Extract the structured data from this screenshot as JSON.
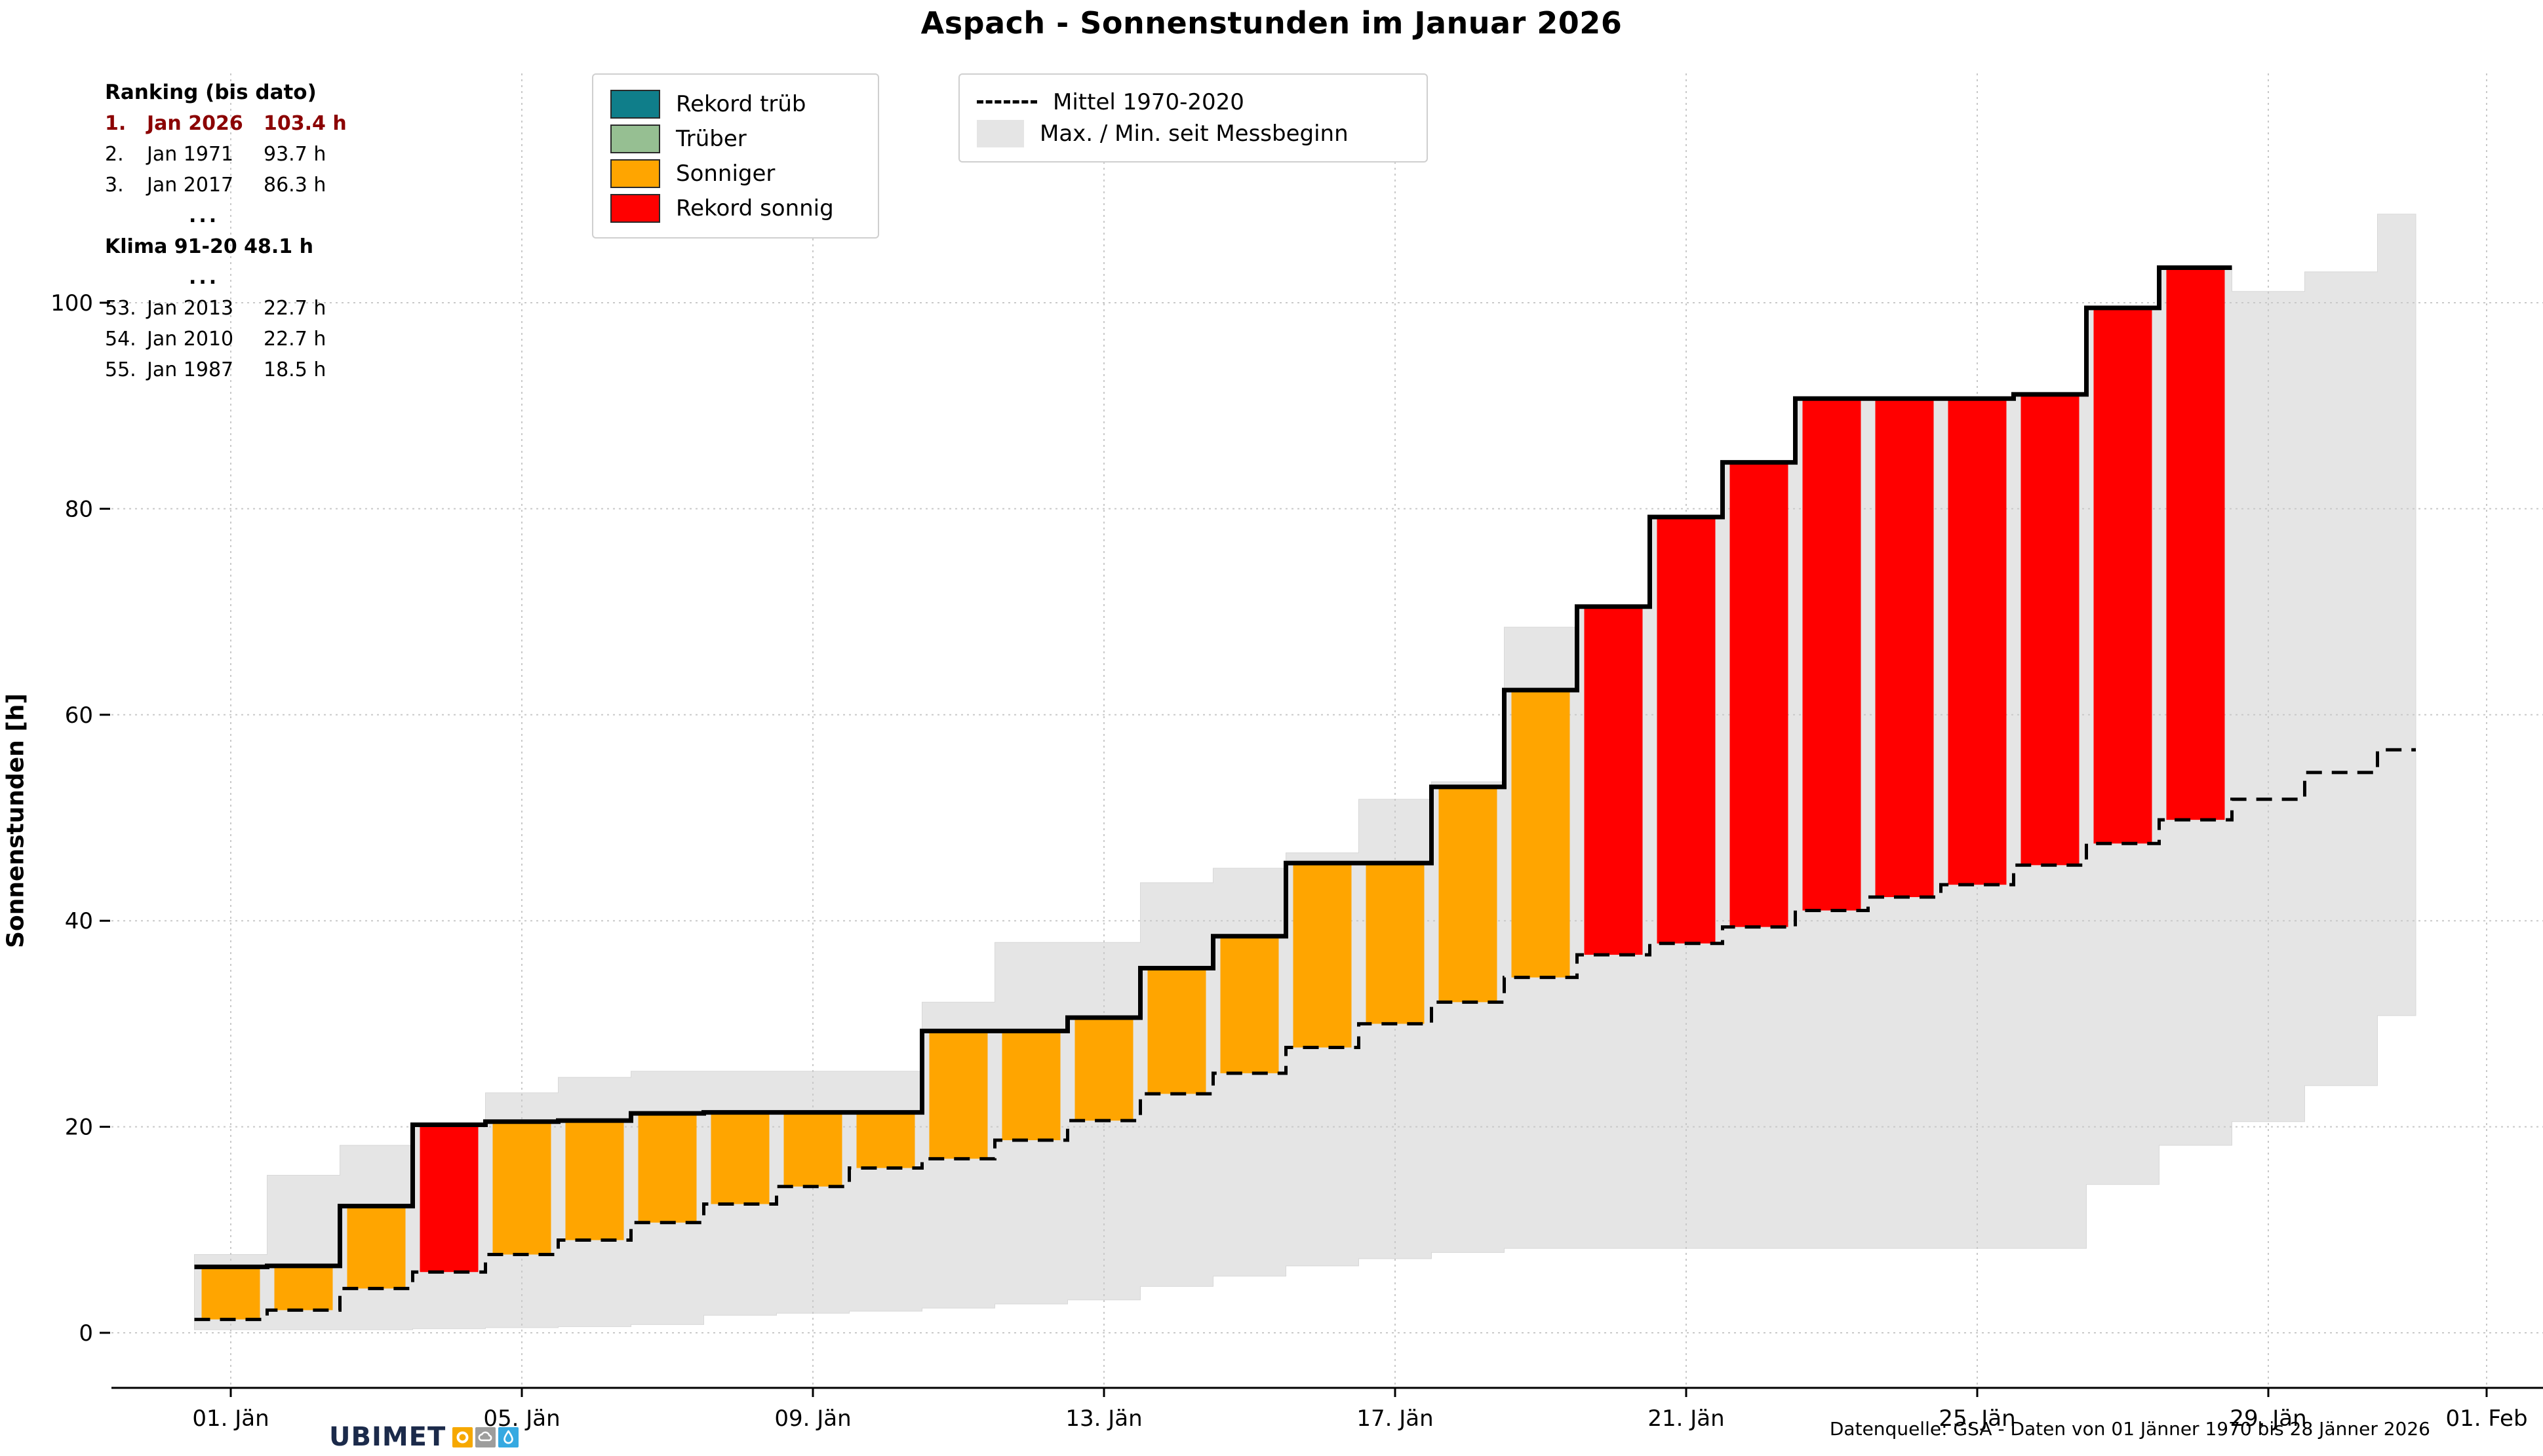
{
  "title": "Aspach - Sonnenstunden im Januar 2026",
  "ranking": {
    "heading": "Ranking (bis dato)",
    "highlight_color": "#8b0000",
    "rows": [
      {
        "rank": "1.",
        "date": "Jan 2026",
        "value": "103.4 h",
        "highlight": true
      },
      {
        "rank": "2.",
        "date": "Jan 1971",
        "value": "93.7 h"
      },
      {
        "rank": "3.",
        "date": "Jan 2017",
        "value": "86.3 h"
      },
      {
        "dots": true,
        "text": "..."
      },
      {
        "text": "Klima 91-20 48.1 h",
        "bold": true
      },
      {
        "dots": true,
        "text": "..."
      },
      {
        "rank": "53.",
        "date": "Jan 2013",
        "value": "22.7 h"
      },
      {
        "rank": "54.",
        "date": "Jan 2010",
        "value": "22.7 h"
      },
      {
        "rank": "55.",
        "date": "Jan 1987",
        "value": "18.5 h"
      }
    ]
  },
  "legend_bars": {
    "items": [
      {
        "label": "Rekord trüb",
        "color": "#0f7e8a"
      },
      {
        "label": "Trüber",
        "color": "#96bf92"
      },
      {
        "label": "Sonniger",
        "color": "#ffa500"
      },
      {
        "label": "Rekord sonnig",
        "color": "#ff0000"
      }
    ]
  },
  "legend_refs": {
    "items": [
      {
        "label": "Mittel 1970-2020",
        "type": "dashed-line"
      },
      {
        "label": "Max. / Min. seit Messbeginn",
        "type": "band",
        "color": "#e5e5e5"
      }
    ]
  },
  "footer": {
    "source": "Datenquelle: GSA - Daten von 01 Jänner 1970 bis 28 Jänner 2026",
    "logo": {
      "word_light": "UBI",
      "word_bold": "MET",
      "navy": "#1b2a4a",
      "icons": [
        {
          "name": "sun-icon",
          "bg": "#f6a800"
        },
        {
          "name": "cloud-icon",
          "bg": "#9d9d9c"
        },
        {
          "name": "drop-icon",
          "bg": "#36a9e1"
        }
      ]
    }
  },
  "chart_data": {
    "type": "bar",
    "subtype": "cumulative-step-bars-with-minmax-band",
    "title": "Aspach - Sonnenstunden im Januar 2026",
    "xlabel": "",
    "ylabel": "Sonnenstunden [h]",
    "ylim": [
      0,
      113
    ],
    "yticks": [
      0,
      20,
      40,
      60,
      80,
      100
    ],
    "grid": true,
    "month_days": 31,
    "days_with_data": 28,
    "xtick_labels": [
      {
        "day": 1,
        "label": "01. Jän"
      },
      {
        "day": 5,
        "label": "05. Jän"
      },
      {
        "day": 9,
        "label": "09. Jän"
      },
      {
        "day": 13,
        "label": "13. Jän"
      },
      {
        "day": 17,
        "label": "17. Jän"
      },
      {
        "day": 21,
        "label": "21. Jän"
      },
      {
        "day": 25,
        "label": "25. Jän"
      },
      {
        "day": 29,
        "label": "29. Jän"
      },
      {
        "day": 32,
        "label": "01. Feb"
      }
    ],
    "series": [
      {
        "name": "Sonnenstunden 2026 (kumuliert)",
        "style": "step-line-solid",
        "values": [
          6.4,
          6.5,
          12.3,
          20.2,
          20.5,
          20.6,
          21.3,
          21.4,
          21.4,
          21.4,
          29.3,
          29.3,
          30.6,
          35.4,
          38.5,
          45.6,
          45.6,
          53.0,
          62.4,
          70.5,
          79.2,
          84.5,
          90.7,
          90.7,
          90.7,
          91.1,
          99.5,
          103.4
        ]
      },
      {
        "name": "Mittel 1970-2020",
        "style": "step-line-dashed",
        "values": [
          1.3,
          2.2,
          4.3,
          5.9,
          7.6,
          9.0,
          10.7,
          12.5,
          14.2,
          16.0,
          16.9,
          18.7,
          20.6,
          23.2,
          25.2,
          27.7,
          30.0,
          32.1,
          34.5,
          36.7,
          37.8,
          39.4,
          41.0,
          42.3,
          43.5,
          45.4,
          47.5,
          49.8,
          51.8,
          54.4,
          56.6
        ]
      },
      {
        "name": "Max. seit Messbeginn",
        "style": "band-upper",
        "values": [
          7.6,
          15.3,
          18.2,
          20.2,
          23.3,
          24.8,
          25.4,
          25.4,
          25.4,
          25.4,
          32.1,
          37.9,
          37.9,
          43.7,
          45.1,
          46.6,
          51.8,
          53.5,
          68.5,
          70.5,
          79.2,
          84.5,
          90.7,
          90.7,
          90.7,
          91.1,
          99.5,
          103.4,
          101.1,
          103.0,
          108.6
        ]
      },
      {
        "name": "Min. seit Messbeginn",
        "style": "band-lower",
        "values": [
          0.3,
          0.3,
          0.3,
          0.4,
          0.5,
          0.6,
          0.8,
          1.7,
          1.9,
          2.1,
          2.4,
          2.8,
          3.2,
          4.5,
          5.5,
          6.5,
          7.2,
          7.8,
          8.2,
          8.2,
          8.2,
          8.2,
          8.2,
          8.2,
          8.2,
          8.2,
          14.4,
          18.2,
          20.5,
          24.0,
          30.8
        ]
      }
    ],
    "bars": {
      "note": "daily bar spans from cumulative mean to cumulative 2026 value",
      "record_days": [
        4,
        20,
        21,
        22,
        23,
        24,
        25,
        26,
        27,
        28
      ]
    },
    "colors": {
      "sonniger": "#ffa500",
      "rekord_sonnig": "#ff0000",
      "rekord_trueb": "#0f7e8a",
      "trueber": "#96bf92",
      "band": "#e5e5e5",
      "mean_line": "#000000",
      "line_2026": "#000000",
      "grid": "#c9c9c9",
      "axis": "#000000",
      "highlight_text": "#8b0000"
    }
  }
}
